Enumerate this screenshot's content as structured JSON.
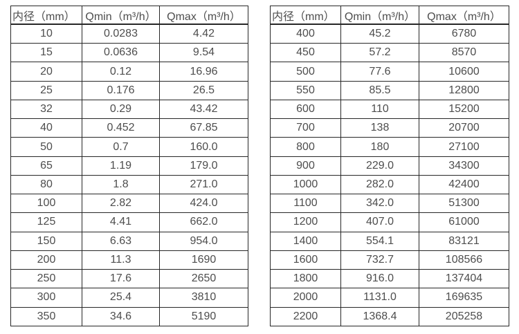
{
  "page": {
    "background_color": "#ffffff",
    "border_color": "#262626",
    "text_color": "#4d4d4d"
  },
  "chart_data": [
    {
      "type": "table",
      "title": "",
      "columns": [
        "内径（mm）",
        "Qmin（m³/h）",
        "Qmax（m³/h）"
      ],
      "rows": [
        [
          "10",
          "0.0283",
          "4.42"
        ],
        [
          "15",
          "0.0636",
          "9.54"
        ],
        [
          "20",
          "0.12",
          "16.96"
        ],
        [
          "25",
          "0.176",
          "26.5"
        ],
        [
          "32",
          "0.29",
          "43.42"
        ],
        [
          "40",
          "0.452",
          "67.85"
        ],
        [
          "50",
          "0.7",
          "160.0"
        ],
        [
          "65",
          "1.19",
          "179.0"
        ],
        [
          "80",
          "1.8",
          "271.0"
        ],
        [
          "100",
          "2.82",
          "424.0"
        ],
        [
          "125",
          "4.41",
          "662.0"
        ],
        [
          "150",
          "6.63",
          "954.0"
        ],
        [
          "200",
          "11.3",
          "1690"
        ],
        [
          "250",
          "17.6",
          "2650"
        ],
        [
          "300",
          "25.4",
          "3810"
        ],
        [
          "350",
          "34.6",
          "5190"
        ]
      ]
    },
    {
      "type": "table",
      "title": "",
      "columns": [
        "内径（mm）",
        "Qmin（m³/h）",
        "Qmax（m³/h）"
      ],
      "rows": [
        [
          "400",
          "45.2",
          "6780"
        ],
        [
          "450",
          "57.2",
          "8570"
        ],
        [
          "500",
          "77.6",
          "10600"
        ],
        [
          "550",
          "85.5",
          "12800"
        ],
        [
          "600",
          "110",
          "15200"
        ],
        [
          "700",
          "138",
          "20700"
        ],
        [
          "800",
          "180",
          "27100"
        ],
        [
          "900",
          "229.0",
          "34300"
        ],
        [
          "1000",
          "282.0",
          "42400"
        ],
        [
          "1100",
          "342.0",
          "51300"
        ],
        [
          "1200",
          "407.0",
          "61000"
        ],
        [
          "1400",
          "554.1",
          "83121"
        ],
        [
          "1600",
          "732.7",
          "108566"
        ],
        [
          "1800",
          "916.0",
          "137404"
        ],
        [
          "2000",
          "1131.0",
          "169635"
        ],
        [
          "2200",
          "1368.4",
          "205258"
        ]
      ]
    }
  ]
}
